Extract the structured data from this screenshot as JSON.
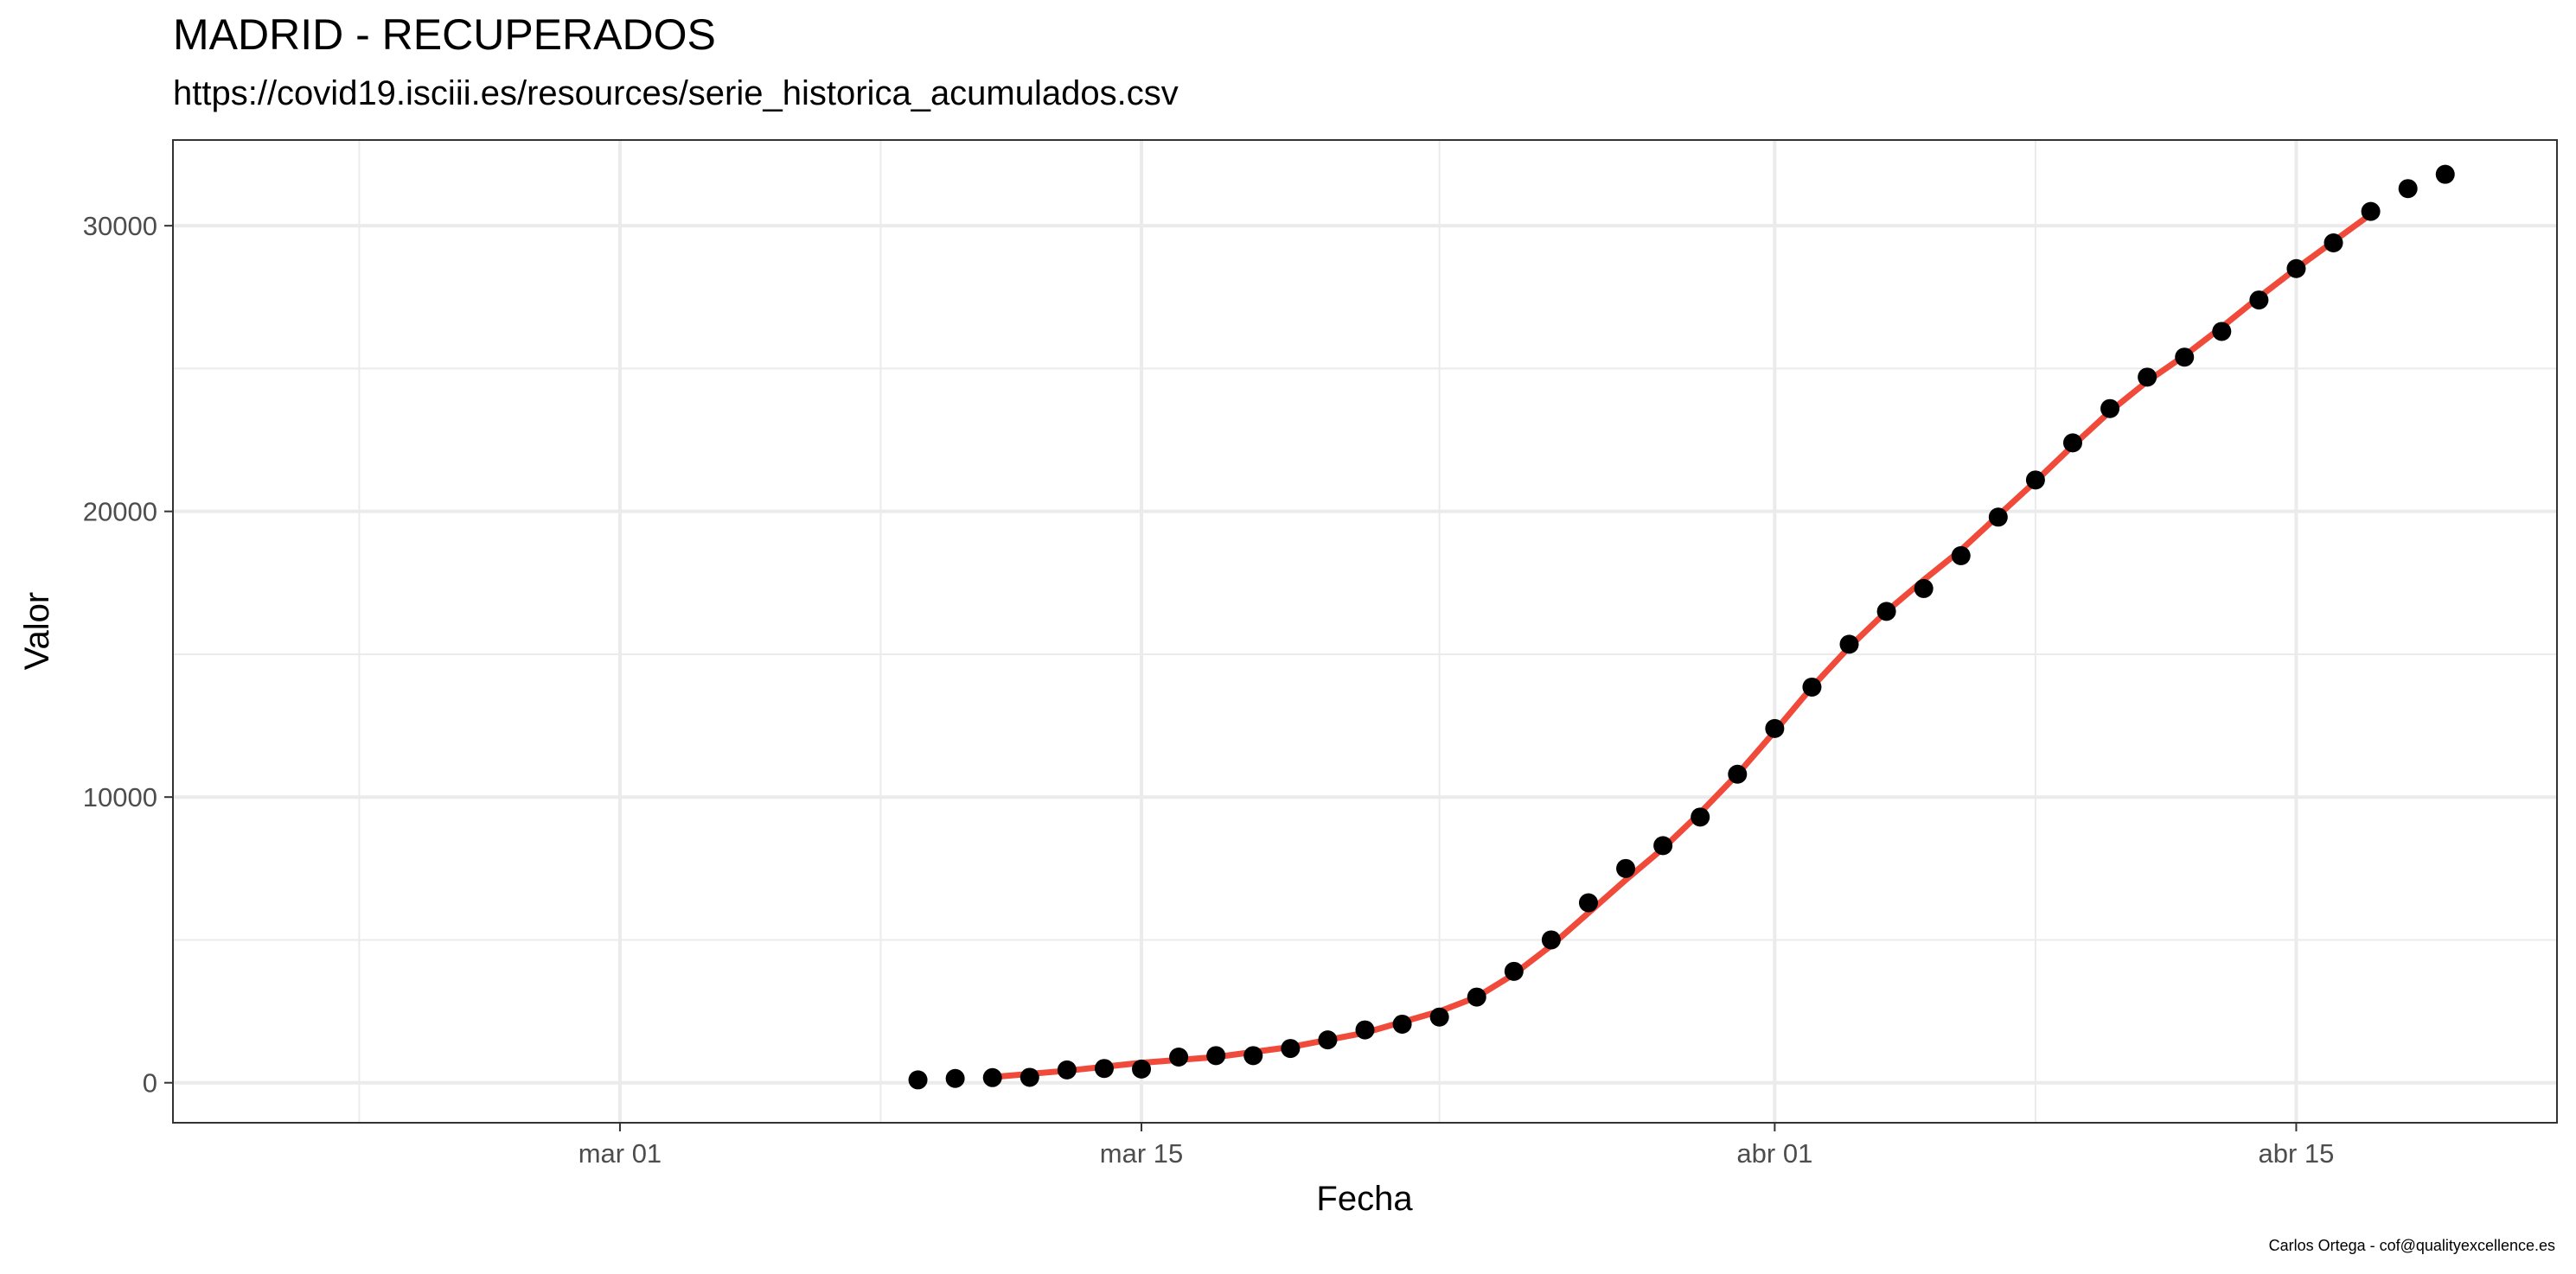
{
  "title": "MADRID - RECUPERADOS",
  "subtitle": "https://covid19.isciii.es/resources/serie_historica_acumulados.csv",
  "caption": "Carlos Ortega - cof@qualityexcellence.es",
  "colors": {
    "points": "#000000",
    "smooth_line": "#F04A3A",
    "grid": "#EBEBEB",
    "panel_border": "#333333"
  },
  "chart_data": {
    "type": "scatter",
    "title": "MADRID - RECUPERADOS",
    "subtitle": "https://covid19.isciii.es/resources/serie_historica_acumulados.csv",
    "xlabel": "Fecha",
    "ylabel": "Valor",
    "x_type": "date",
    "xlim": [
      "2020-02-18",
      "2020-04-22"
    ],
    "ylim": [
      -1400,
      33000
    ],
    "x_ticks": [
      {
        "date": "2020-03-01",
        "label": "mar 01"
      },
      {
        "date": "2020-03-15",
        "label": "mar 15"
      },
      {
        "date": "2020-04-01",
        "label": "abr 01"
      },
      {
        "date": "2020-04-15",
        "label": "abr 15"
      }
    ],
    "x_minor_grid": [
      "2020-02-23",
      "2020-03-08",
      "2020-03-23",
      "2020-04-08"
    ],
    "y_ticks": [
      0,
      10000,
      20000,
      30000
    ],
    "y_tick_labels": [
      "0",
      "10000",
      "20000",
      "30000"
    ],
    "y_minor_grid": [
      5000,
      15000,
      25000
    ],
    "grid": true,
    "legend": "none",
    "series": [
      {
        "type": "scatter",
        "x": [
          "2020-03-09",
          "2020-03-10",
          "2020-03-11",
          "2020-03-12",
          "2020-03-13",
          "2020-03-14",
          "2020-03-15",
          "2020-03-16",
          "2020-03-17",
          "2020-03-18",
          "2020-03-19",
          "2020-03-20",
          "2020-03-21",
          "2020-03-22",
          "2020-03-23",
          "2020-03-24",
          "2020-03-25",
          "2020-03-26",
          "2020-03-27",
          "2020-03-28",
          "2020-03-29",
          "2020-03-30",
          "2020-03-31",
          "2020-04-01",
          "2020-04-02",
          "2020-04-03",
          "2020-04-04",
          "2020-04-05",
          "2020-04-06",
          "2020-04-07",
          "2020-04-08",
          "2020-04-09",
          "2020-04-10",
          "2020-04-11",
          "2020-04-12",
          "2020-04-13",
          "2020-04-14",
          "2020-04-15",
          "2020-04-16",
          "2020-04-17",
          "2020-04-18",
          "2020-04-19"
        ],
        "y": [
          100,
          150,
          180,
          190,
          450,
          500,
          480,
          900,
          950,
          950,
          1200,
          1500,
          1850,
          2050,
          2300,
          3000,
          3900,
          5000,
          6300,
          7500,
          8300,
          9300,
          10800,
          12400,
          13850,
          15350,
          16500,
          17300,
          18450,
          19800,
          21100,
          22400,
          23600,
          24700,
          25400,
          26300,
          27400,
          28500,
          29400,
          30500,
          31300,
          31800
        ]
      },
      {
        "type": "line",
        "smoothed": true,
        "x": [
          "2020-03-11",
          "2020-03-13",
          "2020-03-15",
          "2020-03-17",
          "2020-03-19",
          "2020-03-21",
          "2020-03-23",
          "2020-03-24",
          "2020-03-25",
          "2020-03-26",
          "2020-03-27",
          "2020-03-28",
          "2020-03-29",
          "2020-03-30",
          "2020-03-31",
          "2020-04-01",
          "2020-04-02",
          "2020-04-03",
          "2020-04-04",
          "2020-04-05",
          "2020-04-06",
          "2020-04-07",
          "2020-04-08",
          "2020-04-09",
          "2020-04-10",
          "2020-04-11",
          "2020-04-12",
          "2020-04-13",
          "2020-04-14",
          "2020-04-15",
          "2020-04-16",
          "2020-04-17"
        ],
        "y": [
          200,
          420,
          700,
          900,
          1250,
          1750,
          2500,
          3000,
          3800,
          4800,
          5950,
          7100,
          8200,
          9450,
          10800,
          12300,
          13850,
          15250,
          16500,
          17600,
          18650,
          19850,
          21050,
          22300,
          23500,
          24550,
          25450,
          26450,
          27500,
          28500,
          29450,
          30400
        ]
      }
    ]
  }
}
